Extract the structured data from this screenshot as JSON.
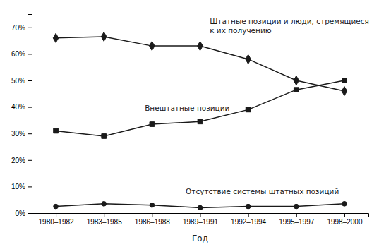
{
  "chart_data": {
    "type": "line",
    "xlabel": "Год",
    "categories": [
      "1980–1982",
      "1983–1985",
      "1986–1988",
      "1989–1991",
      "1992–1994",
      "1995–1997",
      "1998–2000"
    ],
    "series": [
      {
        "name": "Штатные позиции и люди, стремящиеся\nк их получению",
        "marker": "diamond",
        "values": [
          0.66,
          0.665,
          0.63,
          0.63,
          0.58,
          0.5,
          0.46
        ]
      },
      {
        "name": "Внештатные позиции",
        "marker": "square",
        "values": [
          0.31,
          0.29,
          0.335,
          0.345,
          0.39,
          0.465,
          0.5
        ]
      },
      {
        "name": "Отсутствие системы штатных позиций",
        "marker": "circle",
        "values": [
          0.025,
          0.035,
          0.03,
          0.02,
          0.025,
          0.025,
          0.035
        ]
      }
    ],
    "color": "#1a1a1a",
    "ylim": [
      0,
      0.75
    ],
    "yticks": [
      {
        "value": 0.0,
        "label": "0%"
      },
      {
        "value": 0.1,
        "label": "10%"
      },
      {
        "value": 0.2,
        "label": "20%"
      },
      {
        "value": 0.3,
        "label": "30%"
      },
      {
        "value": 0.4,
        "label": "40%"
      },
      {
        "value": 0.5,
        "label": "50%"
      },
      {
        "value": 0.6,
        "label": "60%"
      },
      {
        "value": 0.7,
        "label": "70%"
      }
    ],
    "grid": false
  }
}
